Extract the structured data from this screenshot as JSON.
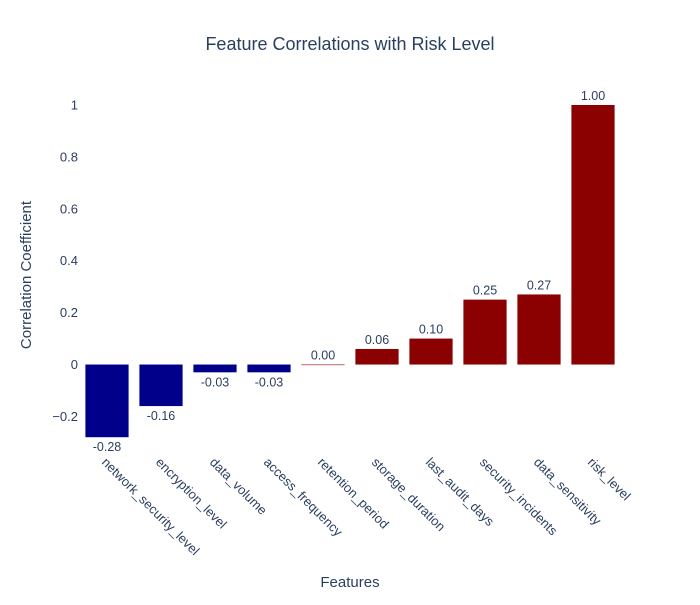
{
  "chart_data": {
    "type": "bar",
    "title": "Feature Correlations with Risk Level",
    "xlabel": "Features",
    "ylabel": "Correlation Coefficient",
    "categories": [
      "network_security_level",
      "encryption_level",
      "data_volume",
      "access_frequency",
      "retention_period",
      "storage_duration",
      "last_audit_days",
      "security_incidents",
      "data_sensitivity",
      "risk_level"
    ],
    "values": [
      -0.28,
      -0.16,
      -0.03,
      -0.03,
      0.0,
      0.06,
      0.1,
      0.25,
      0.27,
      1.0
    ],
    "data_labels": [
      "-0.28",
      "-0.16",
      "-0.03",
      "-0.03",
      "0.00",
      "0.06",
      "0.10",
      "0.25",
      "0.27",
      "1.00"
    ],
    "ylim": [
      -0.31,
      1.05
    ],
    "yticks": [
      -0.2,
      0,
      0.2,
      0.4,
      0.6,
      0.8,
      1
    ],
    "ytick_labels": [
      "−0.2",
      "0",
      "0.2",
      "0.4",
      "0.6",
      "0.8",
      "1"
    ],
    "grid": false,
    "legend": "none",
    "colors": {
      "positive": "#8b0000",
      "negative": "#00008b",
      "text": "#2a3f5f"
    }
  }
}
